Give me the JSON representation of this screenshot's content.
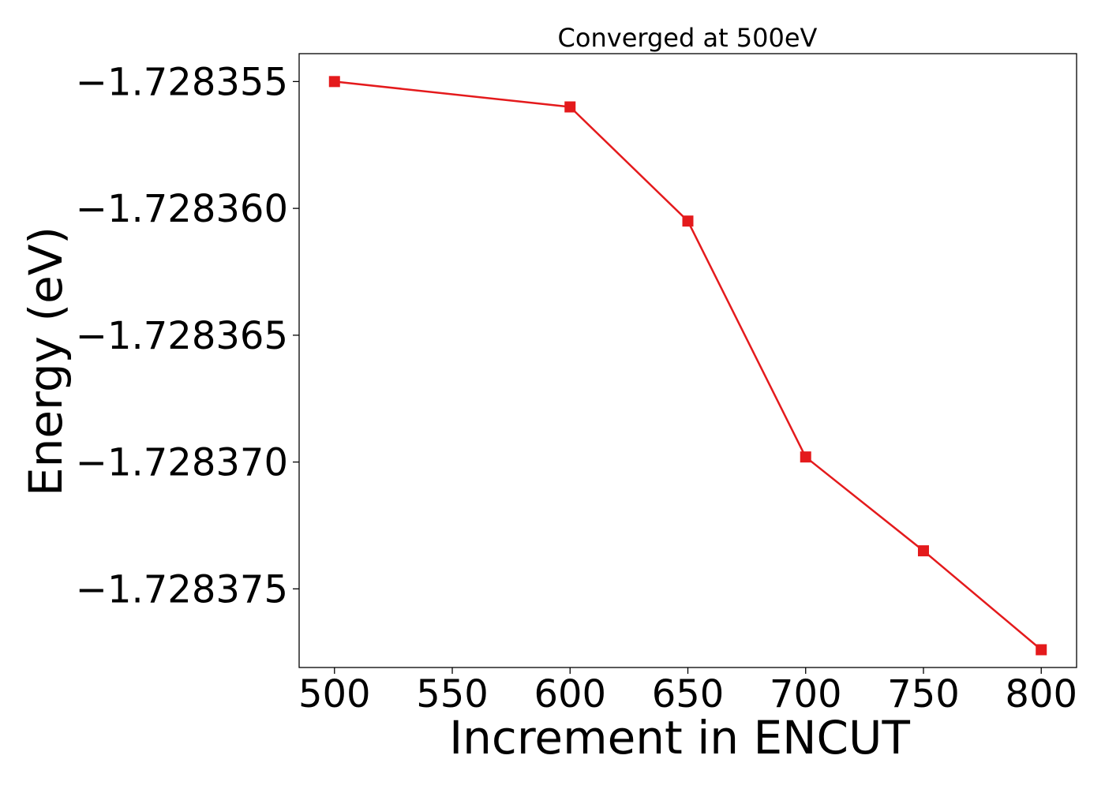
{
  "chart_data": {
    "type": "line",
    "title": "Converged at 500eV",
    "xlabel": "Increment in ENCUT",
    "ylabel": "Energy (eV)",
    "x": [
      500,
      600,
      650,
      700,
      750,
      800
    ],
    "series": [
      {
        "values": [
          -1.728355,
          -1.728356,
          -1.7283605,
          -1.7283698,
          -1.7283735,
          -1.7283774
        ],
        "color": "#e41a1c",
        "marker": "square"
      }
    ],
    "xlim": [
      485,
      815
    ],
    "ylim": [
      -1.7283781,
      -1.7283539
    ],
    "xticks": [
      500,
      550,
      600,
      650,
      700,
      750,
      800
    ],
    "xtick_labels": [
      "500",
      "550",
      "600",
      "650",
      "700",
      "750",
      "800"
    ],
    "yticks": [
      -1.728355,
      -1.72836,
      -1.728365,
      -1.72837,
      -1.728375
    ],
    "ytick_labels": [
      "−1.728355",
      "−1.728360",
      "−1.728365",
      "−1.728370",
      "−1.728375"
    ],
    "grid": false,
    "legend": false
  }
}
